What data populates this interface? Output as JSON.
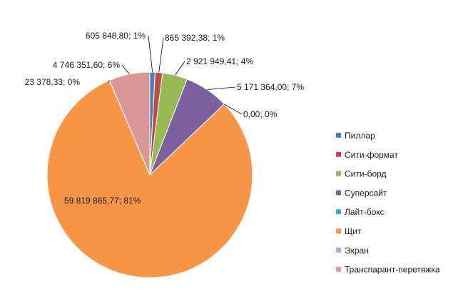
{
  "chart_data": {
    "type": "pie",
    "categories": [
      "Пиллар",
      "Сити-формат",
      "Сити-борд",
      "Суперсайт",
      "Лайт-бокс",
      "Щит",
      "Экран",
      "Транспарант-перетяжка"
    ],
    "values": [
      605848.8,
      865392.38,
      2921949.41,
      5171364.0,
      0.0,
      59819865.77,
      23378.33,
      4746351.6
    ],
    "percent_labels": [
      "1%",
      "1%",
      "4%",
      "7%",
      "0%",
      "81%",
      "0%",
      "6%"
    ],
    "data_labels": [
      "605 848,80; 1%",
      "865 392,38; 1%",
      "2 921 949,41; 4%",
      "5 171 364,00; 7%",
      "0,00; 0%",
      "59 819 865,77; 81%",
      "23 378,33; 0%",
      "4 746 351,60; 6%"
    ],
    "colors": [
      "#4a7ebb",
      "#be4b48",
      "#98b954",
      "#7d60a0",
      "#46aac5",
      "#f79646",
      "#95b3d7",
      "#d99795"
    ],
    "legend": {
      "position": "right",
      "entries": [
        "Пиллар",
        "Сити-формат",
        "Сити-борд",
        "Суперсайт",
        "Лайт-бокс",
        "Щит",
        "Экран",
        "Транспарант-перетяжка"
      ]
    },
    "title": "",
    "start_angle": "top",
    "direction": "clockwise"
  }
}
